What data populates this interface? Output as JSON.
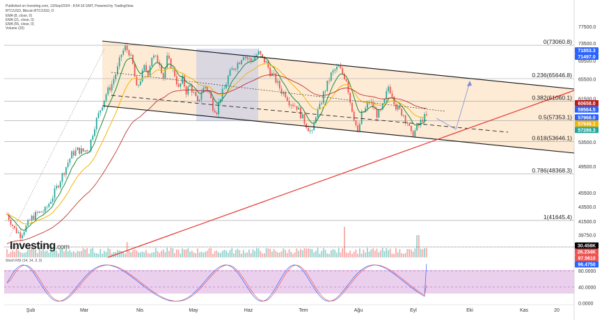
{
  "header": {
    "line1": "Published on Investing.com, 13/Sep/2024 - 8:54:16 GMT, Powered by TradingView.",
    "line2": "BTC/USD, Bitcoin BTC/USD, D",
    "line3": "EMA (8, close, 0)",
    "line4": "EMA (21, close, 0)",
    "line5": "EMA (55, close, 0)",
    "line6": "Volume (20)"
  },
  "watermark": {
    "brand": "Investing",
    "suffix": ".com"
  },
  "indicator_label": "Stoch RSI (14, 14, 3, 3)",
  "colors": {
    "up": "#26a69a",
    "down": "#ef5350",
    "ema8": "#1b8a3a",
    "ema21": "#f5b400",
    "ema55": "#b71c1c",
    "channel_fill": "#fde9d2",
    "channel_line": "#111111",
    "trend_line": "#e53935",
    "box_fill": "#c5c9e6",
    "stoch_bg": "#e7c8ea"
  },
  "chart_data": {
    "type": "candlestick",
    "title": "",
    "x_axis": {
      "ticks": [
        "Şub",
        "Mar",
        "Nis",
        "May",
        "Haz",
        "Tem",
        "Ağu",
        "Eyl",
        "Eki",
        "Kas",
        "20"
      ]
    },
    "y_axis": {
      "scale": "log",
      "range": [
        37000,
        79000
      ],
      "ticks": [
        77500.0,
        73500.0,
        69500.0,
        65500.0,
        61500.0,
        53500.0,
        49500.0,
        45500.0,
        43500.0,
        41500.0,
        39750.0
      ]
    },
    "fib_levels": [
      {
        "label": "0(73060.8)",
        "value": 73060.8
      },
      {
        "label": "0.236(65646.8)",
        "value": 65646.8
      },
      {
        "label": "0.382(61060.1)",
        "value": 61060.1
      },
      {
        "label": "0.5(57353.1)",
        "value": 57353.1
      },
      {
        "label": "0.618(53646.1)",
        "value": 53646.1
      },
      {
        "label": "0.786(48368.3)",
        "value": 48368.3
      },
      {
        "label": "1(41645.4)",
        "value": 41645.4
      }
    ],
    "price_tags": [
      {
        "text": "71853.3",
        "value": 71853.3,
        "color": "#2962ff"
      },
      {
        "text": "71497.0",
        "value": 71497.0,
        "color": "#2962ff"
      },
      {
        "text": "60658.0",
        "value": 60658.0,
        "color": "#b71c1c"
      },
      {
        "text": "59564.5",
        "value": 59564.5,
        "color": "#2962ff"
      },
      {
        "text": "57968.0",
        "value": 57968.0,
        "color": "#2962ff"
      },
      {
        "text": "57949.1",
        "value": 57949.1,
        "color": "#f5b400"
      },
      {
        "text": "57289.3",
        "value": 57289.3,
        "color": "#26a69a"
      }
    ],
    "volume_tags": [
      {
        "text": "30.458K",
        "color": "#000000"
      },
      {
        "text": "26.234K",
        "color": "#ef5350"
      }
    ],
    "stoch": {
      "label": "Stoch RSI (14, 14, 3, 3)",
      "range": [
        0,
        100
      ],
      "ticks": [
        80.0,
        40.0,
        0.0
      ],
      "tick_labels": [
        "80.0000",
        "40.0000",
        "0.0000"
      ],
      "value_tags": [
        {
          "text": "97.5610",
          "value": 97.561,
          "color": "#ef5350"
        },
        {
          "text": "96.4750",
          "value": 96.475,
          "color": "#2962ff"
        }
      ]
    },
    "price_path": [
      [
        0,
        42500
      ],
      [
        4,
        40500
      ],
      [
        7,
        39800
      ],
      [
        10,
        40800
      ],
      [
        13,
        42000
      ],
      [
        16,
        42600
      ],
      [
        20,
        43000
      ],
      [
        24,
        45000
      ],
      [
        28,
        47500
      ],
      [
        31,
        49500
      ],
      [
        34,
        51500
      ],
      [
        37,
        52200
      ],
      [
        40,
        52000
      ],
      [
        43,
        52500
      ],
      [
        46,
        56500
      ],
      [
        49,
        59500
      ],
      [
        52,
        62500
      ],
      [
        55,
        64500
      ],
      [
        58,
        67800
      ],
      [
        60,
        71000
      ],
      [
        62,
        72500
      ],
      [
        64,
        71500
      ],
      [
        66,
        68500
      ],
      [
        68,
        63500
      ],
      [
        70,
        65500
      ],
      [
        72,
        68000
      ],
      [
        74,
        67000
      ],
      [
        76,
        70500
      ],
      [
        78,
        70000
      ],
      [
        80,
        69200
      ],
      [
        82,
        66000
      ],
      [
        84,
        70000
      ],
      [
        86,
        68500
      ],
      [
        88,
        66500
      ],
      [
        90,
        63500
      ],
      [
        92,
        65500
      ],
      [
        94,
        63000
      ],
      [
        96,
        64200
      ],
      [
        98,
        62500
      ],
      [
        100,
        60500
      ],
      [
        102,
        63000
      ],
      [
        104,
        64000
      ],
      [
        106,
        62800
      ],
      [
        108,
        60000
      ],
      [
        110,
        59200
      ],
      [
        112,
        62000
      ],
      [
        114,
        63500
      ],
      [
        116,
        66000
      ],
      [
        118,
        67500
      ],
      [
        120,
        68500
      ],
      [
        122,
        69500
      ],
      [
        124,
        71000
      ],
      [
        126,
        70000
      ],
      [
        128,
        69500
      ],
      [
        130,
        70500
      ],
      [
        132,
        71200
      ],
      [
        134,
        70000
      ],
      [
        136,
        69000
      ],
      [
        138,
        67000
      ],
      [
        140,
        66000
      ],
      [
        142,
        64500
      ],
      [
        144,
        63000
      ],
      [
        146,
        62500
      ],
      [
        148,
        61000
      ],
      [
        150,
        60500
      ],
      [
        152,
        60000
      ],
      [
        154,
        58500
      ],
      [
        156,
        57200
      ],
      [
        158,
        56000
      ],
      [
        160,
        55000
      ],
      [
        162,
        58500
      ],
      [
        164,
        59800
      ],
      [
        166,
        62500
      ],
      [
        168,
        64500
      ],
      [
        170,
        66500
      ],
      [
        172,
        67500
      ],
      [
        174,
        68000
      ],
      [
        176,
        66700
      ],
      [
        178,
        65500
      ],
      [
        180,
        61000
      ],
      [
        182,
        58000
      ],
      [
        184,
        55000
      ],
      [
        186,
        58500
      ],
      [
        188,
        59500
      ],
      [
        190,
        61000
      ],
      [
        192,
        60000
      ],
      [
        194,
        58500
      ],
      [
        196,
        59000
      ],
      [
        198,
        61000
      ],
      [
        200,
        64000
      ],
      [
        202,
        62500
      ],
      [
        204,
        60000
      ],
      [
        206,
        59200
      ],
      [
        208,
        58500
      ],
      [
        210,
        57000
      ],
      [
        212,
        54800
      ],
      [
        214,
        55500
      ],
      [
        216,
        56500
      ],
      [
        218,
        57800
      ],
      [
        220,
        58100
      ]
    ]
  }
}
